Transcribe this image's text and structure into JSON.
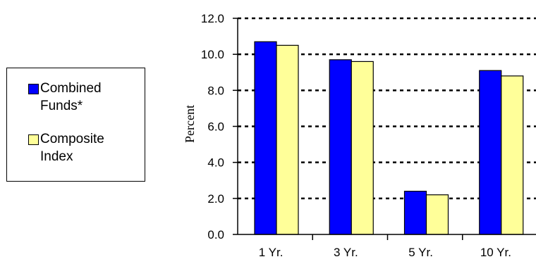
{
  "chart_data": {
    "type": "bar",
    "categories": [
      "1 Yr.",
      "3 Yr.",
      "5 Yr.",
      "10 Yr."
    ],
    "series": [
      {
        "name": "Combined Funds*",
        "values": [
          10.7,
          9.7,
          2.4,
          9.1
        ],
        "color": "#0000ff"
      },
      {
        "name": "Composite Index",
        "values": [
          10.5,
          9.6,
          2.2,
          8.8
        ],
        "color": "#ffff99"
      }
    ],
    "ylabel": "Percent",
    "ylim": [
      0,
      12
    ],
    "yticks": [
      "0.0",
      "2.0",
      "4.0",
      "6.0",
      "8.0",
      "10.0",
      "12.0"
    ],
    "grid": "dotted horizontal",
    "legend_position": "left"
  },
  "legend": {
    "line1": [
      "Combined",
      "Funds*"
    ],
    "line2": [
      "Composite",
      "Index"
    ]
  }
}
